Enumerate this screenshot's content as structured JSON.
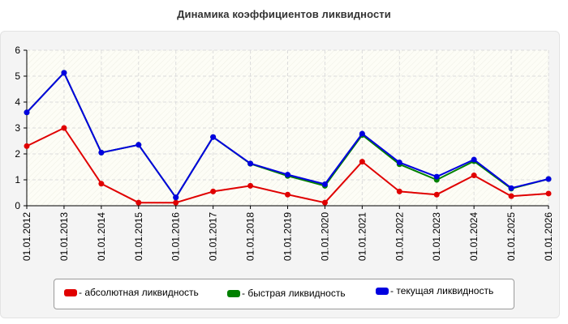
{
  "chart_data": {
    "type": "line",
    "title": "Динамика коэффициентов ликвидности",
    "xlabel": "",
    "ylabel": "",
    "categories": [
      "01.01.2012",
      "01.01.2013",
      "01.01.2014",
      "01.01.2015",
      "01.01.2016",
      "01.01.2017",
      "01.01.2018",
      "01.01.2019",
      "01.01.2020",
      "01.01.2021",
      "01.01.2022",
      "01.01.2023",
      "01.01.2024",
      "01.01.2025",
      "01.01.2026"
    ],
    "ylim": [
      0,
      6
    ],
    "yticks": [
      0,
      1,
      2,
      3,
      4,
      5,
      6
    ],
    "grid": true,
    "legend_position": "bottom",
    "series": [
      {
        "name": "- абсолютная ликвидность",
        "color": "#e00000",
        "values": [
          2.3,
          3.0,
          0.85,
          0.12,
          0.12,
          0.55,
          0.77,
          0.43,
          0.12,
          1.7,
          0.55,
          0.43,
          1.17,
          0.37,
          0.47
        ]
      },
      {
        "name": "- быстрая ликвидность",
        "color": "#008000",
        "values": [
          3.6,
          5.13,
          2.05,
          2.35,
          0.32,
          2.65,
          1.62,
          1.15,
          0.77,
          2.73,
          1.6,
          1.0,
          1.72,
          0.66,
          1.03
        ]
      },
      {
        "name": "- текущая ликвидность",
        "color": "#0000e0",
        "values": [
          3.6,
          5.13,
          2.05,
          2.35,
          0.32,
          2.65,
          1.63,
          1.2,
          0.83,
          2.78,
          1.67,
          1.12,
          1.78,
          0.68,
          1.03
        ]
      }
    ]
  }
}
